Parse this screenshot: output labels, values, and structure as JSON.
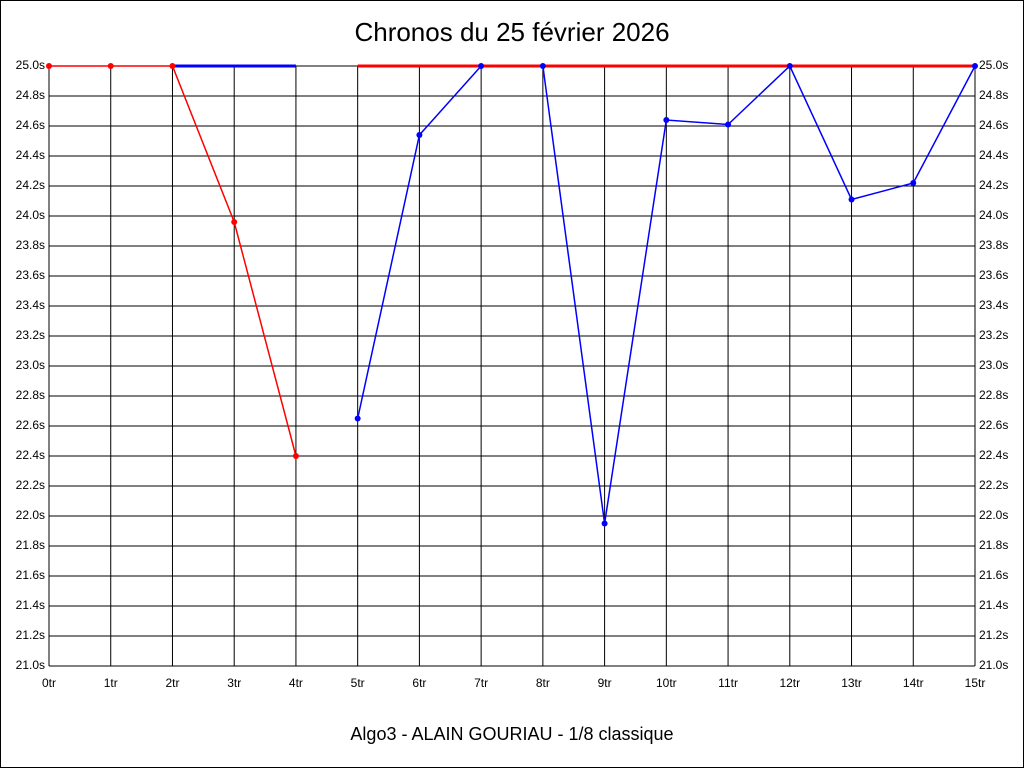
{
  "chart_data": {
    "type": "line",
    "title": "Chronos du 25 février 2026",
    "subtitle": "Algo3 - ALAIN GOURIAU - 1/8 classique",
    "xlim": [
      0,
      15
    ],
    "xticks": [
      {
        "value": 0,
        "label": "0tr"
      },
      {
        "value": 1,
        "label": "1tr"
      },
      {
        "value": 2,
        "label": "2tr"
      },
      {
        "value": 3,
        "label": "3tr"
      },
      {
        "value": 4,
        "label": "4tr"
      },
      {
        "value": 5,
        "label": "5tr"
      },
      {
        "value": 6,
        "label": "6tr"
      },
      {
        "value": 7,
        "label": "7tr"
      },
      {
        "value": 8,
        "label": "8tr"
      },
      {
        "value": 9,
        "label": "9tr"
      },
      {
        "value": 10,
        "label": "10tr"
      },
      {
        "value": 11,
        "label": "11tr"
      },
      {
        "value": 12,
        "label": "12tr"
      },
      {
        "value": 13,
        "label": "13tr"
      },
      {
        "value": 14,
        "label": "14tr"
      },
      {
        "value": 15,
        "label": "15tr"
      }
    ],
    "ylim": [
      21.0,
      25.0
    ],
    "yticks": [
      {
        "value": 21.0,
        "label": "21.0s"
      },
      {
        "value": 21.2,
        "label": "21.2s"
      },
      {
        "value": 21.4,
        "label": "21.4s"
      },
      {
        "value": 21.6,
        "label": "21.6s"
      },
      {
        "value": 21.8,
        "label": "21.8s"
      },
      {
        "value": 22.0,
        "label": "22.0s"
      },
      {
        "value": 22.2,
        "label": "22.2s"
      },
      {
        "value": 22.4,
        "label": "22.4s"
      },
      {
        "value": 22.6,
        "label": "22.6s"
      },
      {
        "value": 22.8,
        "label": "22.8s"
      },
      {
        "value": 23.0,
        "label": "23.0s"
      },
      {
        "value": 23.2,
        "label": "23.2s"
      },
      {
        "value": 23.4,
        "label": "23.4s"
      },
      {
        "value": 23.6,
        "label": "23.6s"
      },
      {
        "value": 23.8,
        "label": "23.8s"
      },
      {
        "value": 24.0,
        "label": "24.0s"
      },
      {
        "value": 24.2,
        "label": "24.2s"
      },
      {
        "value": 24.4,
        "label": "24.4s"
      },
      {
        "value": 24.6,
        "label": "24.6s"
      },
      {
        "value": 24.8,
        "label": "24.8s"
      },
      {
        "value": 25.0,
        "label": "25.0s"
      }
    ],
    "grid": true,
    "series": [
      {
        "color": "#0000ff",
        "line_width": 3,
        "markers": false,
        "x": [
          2,
          3,
          4
        ],
        "values": [
          25.0,
          25.0,
          25.0
        ]
      },
      {
        "color": "#0000ff",
        "line_width": 1.5,
        "markers": true,
        "x": [
          5,
          6,
          7,
          8,
          9,
          10,
          11,
          12,
          13,
          14,
          15
        ],
        "values": [
          22.65,
          24.54,
          25.0,
          25.0,
          21.95,
          24.64,
          24.61,
          25.0,
          24.11,
          24.22,
          25.0
        ]
      },
      {
        "color": "#ff0000",
        "line_width": 3,
        "markers": false,
        "x": [
          5,
          6,
          7,
          8,
          9,
          10,
          11,
          12,
          13,
          14,
          15
        ],
        "values": [
          25.0,
          25.0,
          25.0,
          25.0,
          25.0,
          25.0,
          25.0,
          25.0,
          25.0,
          25.0,
          25.0
        ]
      },
      {
        "color": "#ff0000",
        "line_width": 1.5,
        "markers": true,
        "x": [
          0,
          1,
          2,
          3,
          4
        ],
        "values": [
          25.0,
          25.0,
          25.0,
          23.96,
          22.4
        ]
      }
    ]
  }
}
